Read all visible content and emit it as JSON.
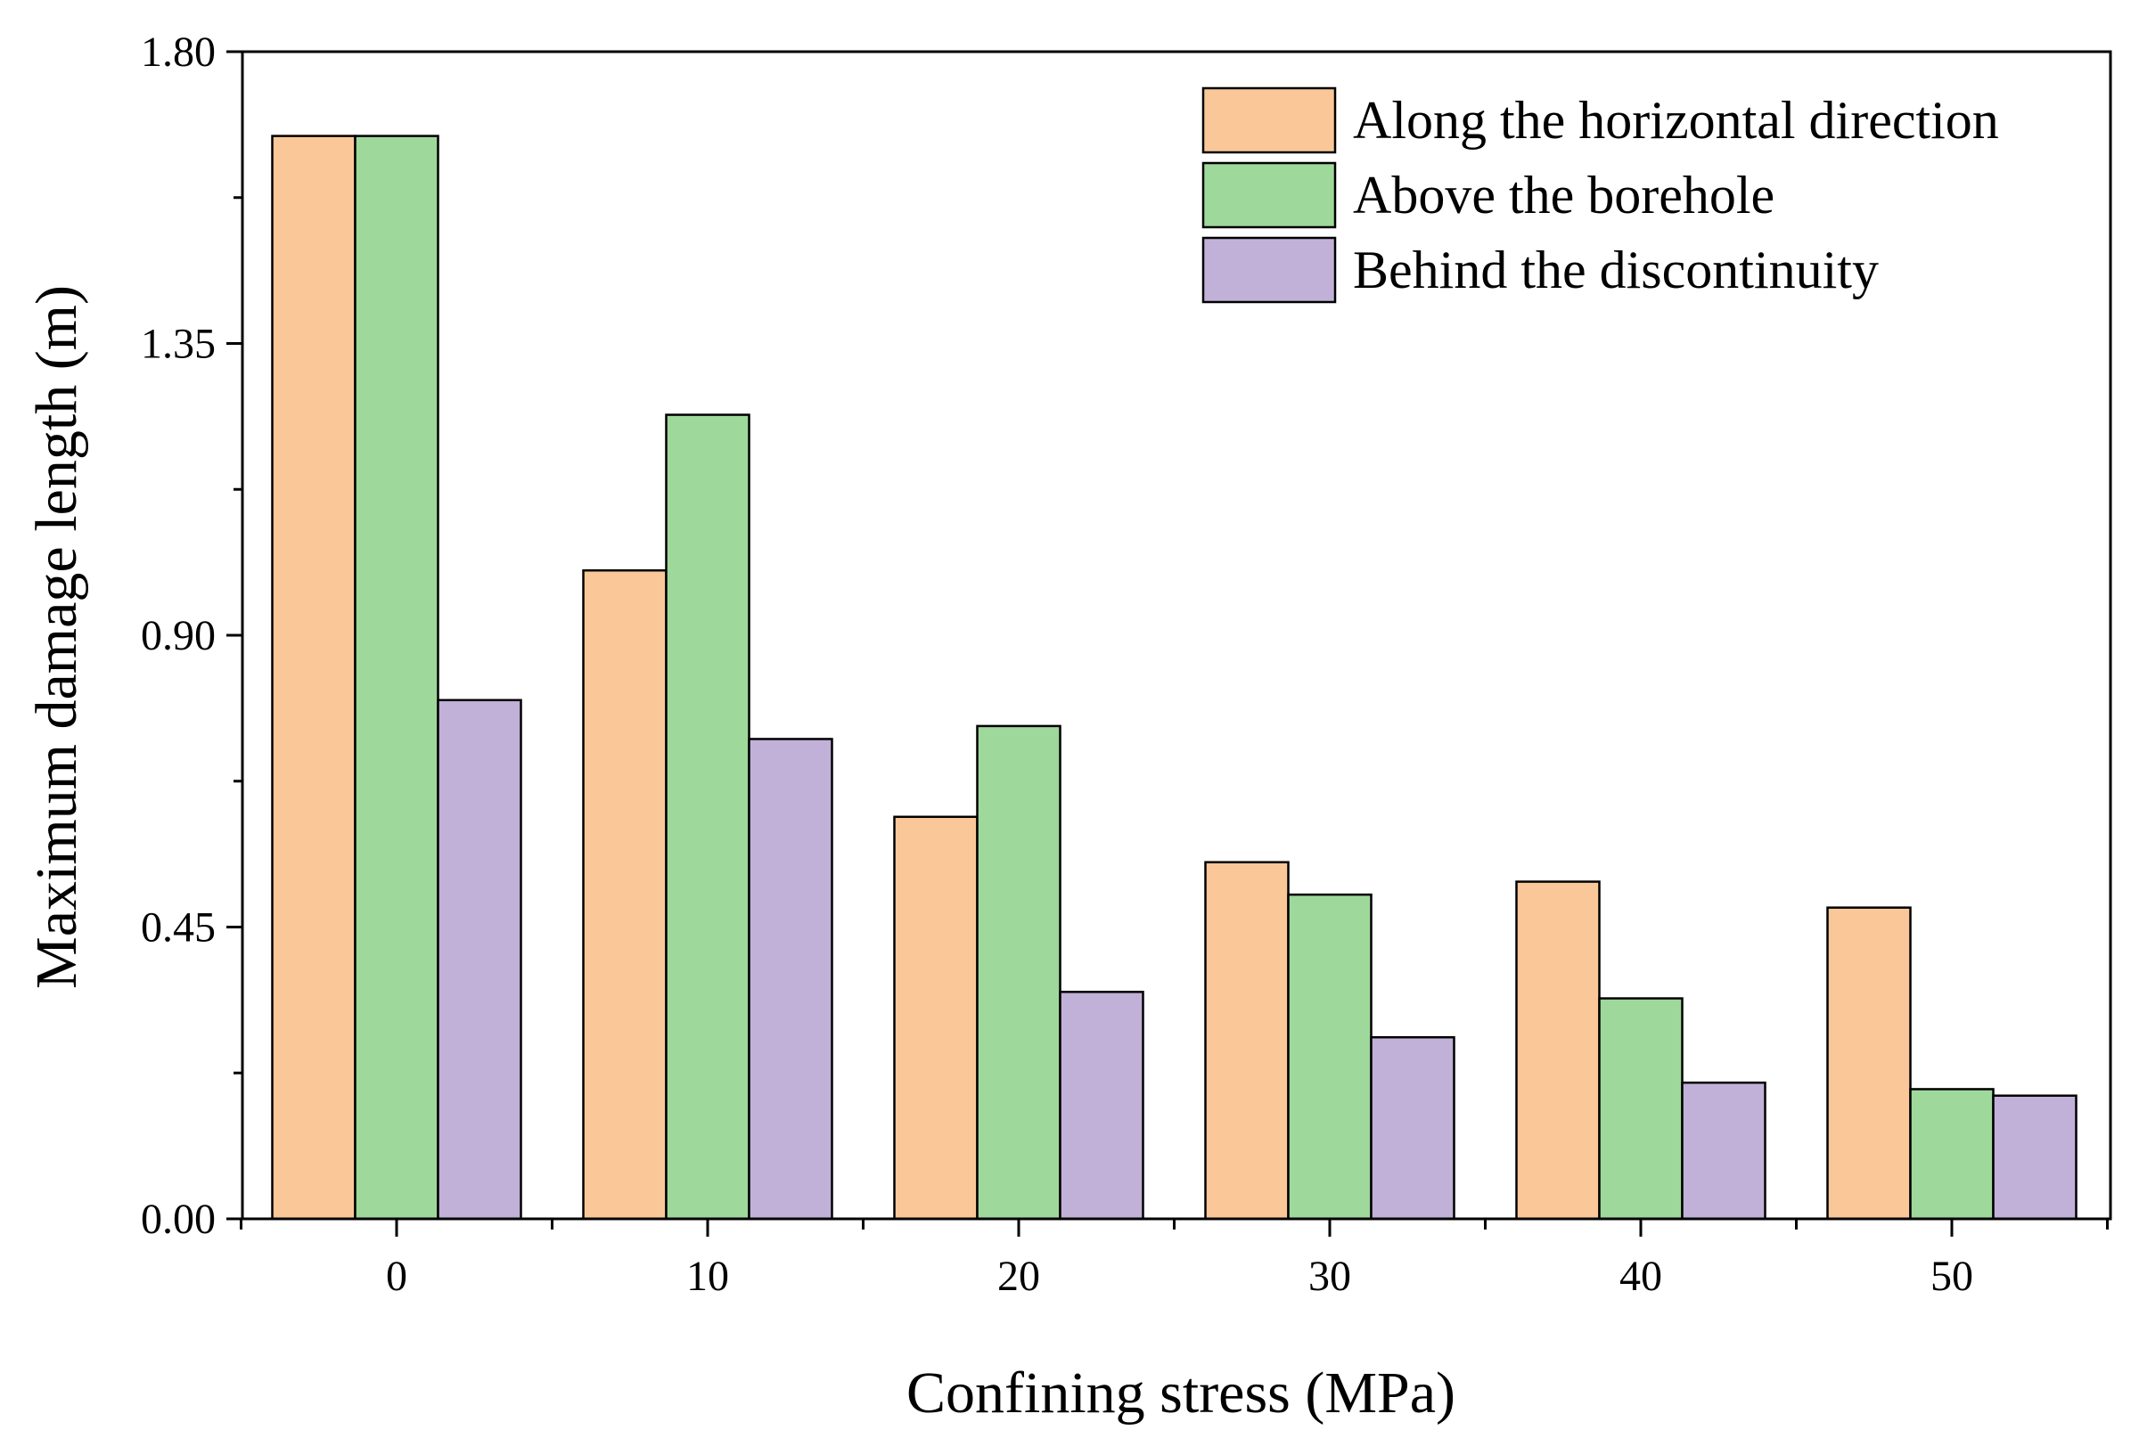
{
  "chart_data": {
    "type": "bar",
    "title": "",
    "xlabel": "Confining stress (MPa)",
    "ylabel": "Maximum damage length (m)",
    "categories": [
      "0",
      "10",
      "20",
      "30",
      "40",
      "50"
    ],
    "ylim": [
      0,
      1.8
    ],
    "yticks": [
      "0.00",
      "0.45",
      "0.90",
      "1.35",
      "1.80"
    ],
    "legend_position": "top-right",
    "grid": false,
    "series": [
      {
        "name": "Along the horizontal direction",
        "color": "#FAC898",
        "values": [
          1.67,
          1.0,
          0.62,
          0.55,
          0.52,
          0.48
        ]
      },
      {
        "name": "Above the borehole",
        "color": "#9ED89B",
        "values": [
          1.67,
          1.24,
          0.76,
          0.5,
          0.34,
          0.2
        ]
      },
      {
        "name": "Behind the discontinuity",
        "color": "#C1B1D8",
        "values": [
          0.8,
          0.74,
          0.35,
          0.28,
          0.21,
          0.19
        ]
      }
    ]
  }
}
